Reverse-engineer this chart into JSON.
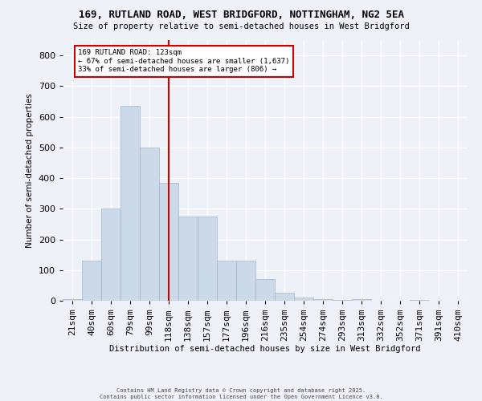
{
  "title1": "169, RUTLAND ROAD, WEST BRIDGFORD, NOTTINGHAM, NG2 5EA",
  "title2": "Size of property relative to semi-detached houses in West Bridgford",
  "xlabel": "Distribution of semi-detached houses by size in West Bridgford",
  "ylabel": "Number of semi-detached properties",
  "bar_labels": [
    "21sqm",
    "40sqm",
    "60sqm",
    "79sqm",
    "99sqm",
    "118sqm",
    "138sqm",
    "157sqm",
    "177sqm",
    "196sqm",
    "216sqm",
    "235sqm",
    "254sqm",
    "274sqm",
    "293sqm",
    "313sqm",
    "332sqm",
    "352sqm",
    "371sqm",
    "391sqm",
    "410sqm"
  ],
  "bar_values": [
    5,
    130,
    300,
    635,
    500,
    385,
    275,
    275,
    130,
    130,
    70,
    25,
    10,
    5,
    2,
    5,
    0,
    0,
    2,
    0,
    0
  ],
  "bar_color": "#ccd9e8",
  "bar_edgecolor": "#a0b8cc",
  "property_bin_index": 5,
  "vline_color": "#cc0000",
  "annotation_line1": "169 RUTLAND ROAD: 123sqm",
  "annotation_line2": "← 67% of semi-detached houses are smaller (1,637)",
  "annotation_line3": "33% of semi-detached houses are larger (806) →",
  "annotation_box_edgecolor": "#cc0000",
  "footer_text": "Contains HM Land Registry data © Crown copyright and database right 2025.\nContains public sector information licensed under the Open Government Licence v3.0.",
  "ylim": [
    0,
    850
  ],
  "background_color": "#eef2f8",
  "yticks": [
    0,
    100,
    200,
    300,
    400,
    500,
    600,
    700,
    800
  ]
}
